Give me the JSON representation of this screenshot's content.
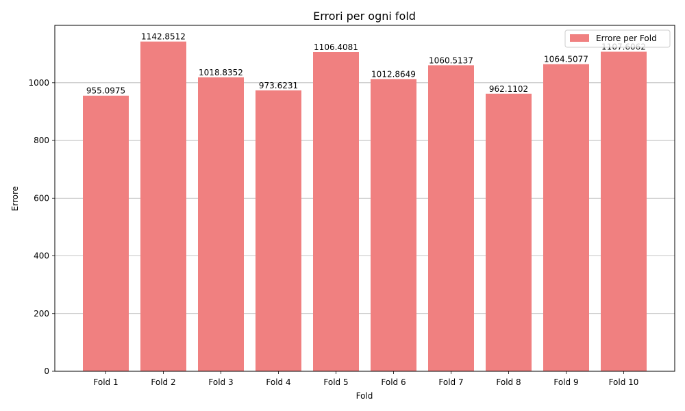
{
  "chart_data": {
    "type": "bar",
    "title": "Errori per ogni fold",
    "xlabel": "Fold",
    "ylabel": "Errore",
    "categories": [
      "Fold 1",
      "Fold 2",
      "Fold 3",
      "Fold 4",
      "Fold 5",
      "Fold 6",
      "Fold 7",
      "Fold 8",
      "Fold 9",
      "Fold 10"
    ],
    "series": [
      {
        "name": "Errore per Fold",
        "values": [
          955.0975,
          1142.8512,
          1018.8352,
          973.6231,
          1106.4081,
          1012.8649,
          1060.5137,
          962.1102,
          1064.5077,
          1107.6062
        ],
        "labels": [
          "955.0975",
          "1142.8512",
          "1018.8352",
          "973.6231",
          "1106.4081",
          "1012.8649",
          "1060.5137",
          "962.1102",
          "1064.5077",
          "1107.6062"
        ],
        "color": "#f08080"
      }
    ],
    "ylim": [
      0,
      1199
    ],
    "yticks": [
      0,
      200,
      400,
      600,
      800,
      1000
    ],
    "grid": "y",
    "legend_position": "top-right"
  }
}
